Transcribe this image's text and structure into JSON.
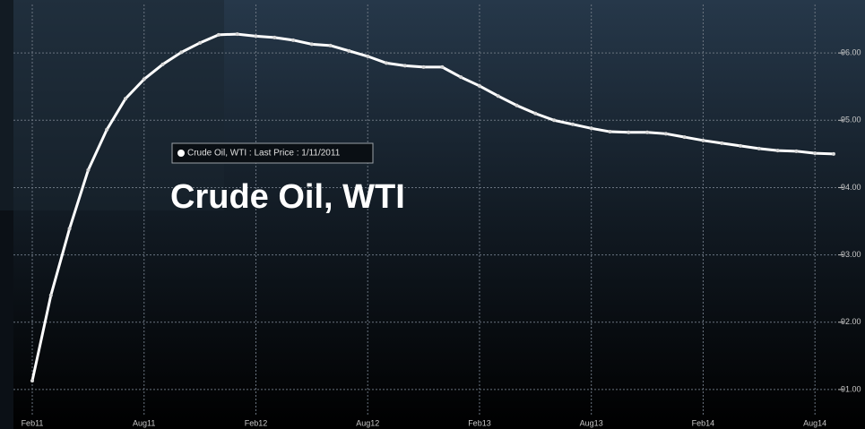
{
  "chart_data": {
    "type": "line",
    "title": "Crude Oil, WTI",
    "categories": [
      "Feb11",
      null,
      null,
      null,
      null,
      null,
      "Aug11",
      null,
      null,
      null,
      null,
      null,
      "Feb12",
      null,
      null,
      null,
      null,
      null,
      "Aug12",
      null,
      null,
      null,
      null,
      null,
      "Feb13",
      null,
      null,
      null,
      null,
      null,
      "Aug13",
      null,
      null,
      null,
      null,
      null,
      "Feb14",
      null,
      null,
      null,
      null,
      null,
      "Aug14",
      null
    ],
    "series": [
      {
        "name": "Crude Oil, WTI : Last Price : 1/11/2011",
        "color": "#ffffff",
        "values": [
          91.13,
          92.4,
          93.39,
          94.26,
          94.86,
          95.32,
          95.61,
          95.83,
          96.01,
          96.15,
          96.27,
          96.28,
          96.25,
          96.23,
          96.19,
          96.13,
          96.11,
          96.03,
          95.95,
          95.85,
          95.81,
          95.79,
          95.79,
          95.64,
          95.51,
          95.36,
          95.22,
          95.1,
          95.0,
          94.94,
          94.88,
          94.83,
          94.82,
          94.82,
          94.8,
          94.75,
          94.7,
          94.66,
          94.62,
          94.58,
          94.55,
          94.54,
          94.51,
          94.5
        ]
      }
    ],
    "ylim": [
      90.6,
      96.72
    ],
    "yticks": [
      {
        "value": 91,
        "label": "91.00"
      },
      {
        "value": 92,
        "label": "92.00"
      },
      {
        "value": 93,
        "label": "93.00"
      },
      {
        "value": 94,
        "label": "94.00"
      },
      {
        "value": 95,
        "label": "95.00"
      },
      {
        "value": 96,
        "label": "96.00"
      }
    ],
    "grid": true
  }
}
